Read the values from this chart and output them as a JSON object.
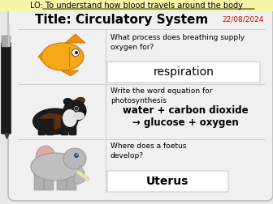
{
  "lo_text": "LO: To understand how blood travels around the body",
  "title": "Title: Circulatory System",
  "date": "22/08/2024",
  "lo_bg": "#f5f5aa",
  "main_bg": "#e8e8e8",
  "whiteboard_bg": "#f0f0f0",
  "q1_question": "What process does breathing supply\noxygen for?",
  "q1_answer": "respiration",
  "q2_question": "Write the word equation for\nphotosynthesis",
  "q2_answer_line1": "water + carbon dioxide",
  "q2_answer_line2": "→ glucose + oxygen",
  "q3_question": "Where does a foetus\ndevelop?",
  "q3_answer": "Uterus",
  "answer_box_color": "#ffffff",
  "date_color": "#cc0000",
  "section_divider": "#cccccc",
  "wb_border": "#bbbbbb"
}
